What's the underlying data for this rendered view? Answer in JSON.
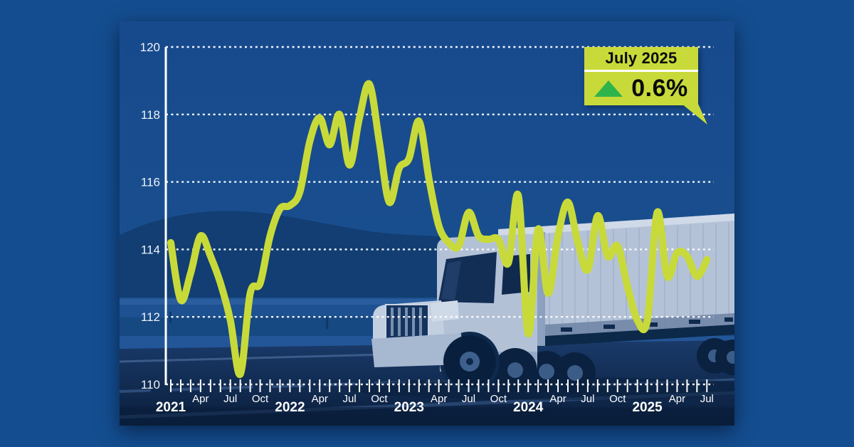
{
  "page": {
    "background_color": "#144e90"
  },
  "callout": {
    "title": "July 2025",
    "value": "0.6%",
    "direction": "up",
    "bg_color": "#c8da3a",
    "arrow_color": "#2fb44c",
    "up_arrow_icon": "triangle-up"
  },
  "chart_data": {
    "type": "line",
    "line_color": "#c8da3a",
    "grid": "dotted-white-horizontal",
    "legend": "none",
    "ylim": [
      110,
      120
    ],
    "y_ticks": [
      120,
      118,
      116,
      114,
      112,
      110
    ],
    "months": [
      "Jan 2021",
      "Feb 2021",
      "Mar 2021",
      "Apr 2021",
      "May 2021",
      "Jun 2021",
      "Jul 2021",
      "Aug 2021",
      "Sep 2021",
      "Oct 2021",
      "Nov 2021",
      "Dec 2021",
      "Jan 2022",
      "Feb 2022",
      "Mar 2022",
      "Apr 2022",
      "May 2022",
      "Jun 2022",
      "Jul 2022",
      "Aug 2022",
      "Sep 2022",
      "Oct 2022",
      "Nov 2022",
      "Dec 2022",
      "Jan 2023",
      "Feb 2023",
      "Mar 2023",
      "Apr 2023",
      "May 2023",
      "Jun 2023",
      "Jul 2023",
      "Aug 2023",
      "Sep 2023",
      "Oct 2023",
      "Nov 2023",
      "Dec 2023",
      "Jan 2024",
      "Feb 2024",
      "Mar 2024",
      "Apr 2024",
      "May 2024",
      "Jun 2024",
      "Jul 2024",
      "Aug 2024",
      "Sep 2024",
      "Oct 2024",
      "Nov 2024",
      "Dec 2024",
      "Jan 2025",
      "Feb 2025",
      "Mar 2025",
      "Apr 2025",
      "May 2025",
      "Jun 2025",
      "Jul 2025"
    ],
    "values": [
      114.2,
      112.5,
      113.3,
      114.4,
      113.8,
      113.0,
      111.9,
      110.3,
      112.7,
      113.0,
      114.4,
      115.2,
      115.3,
      115.7,
      117.2,
      117.9,
      117.1,
      118.0,
      116.5,
      117.9,
      118.9,
      117.2,
      115.4,
      116.4,
      116.7,
      117.8,
      116.1,
      114.7,
      114.2,
      114.1,
      115.1,
      114.4,
      114.3,
      114.3,
      113.6,
      115.6,
      111.5,
      114.6,
      112.7,
      114.4,
      115.4,
      114.2,
      113.4,
      115.0,
      113.8,
      114.1,
      112.9,
      111.9,
      111.9,
      115.1,
      113.2,
      113.9,
      113.8,
      113.2,
      113.7
    ],
    "x_tick_labels": [
      {
        "i": 0,
        "label": "2021",
        "year": true
      },
      {
        "i": 3,
        "label": "Apr",
        "year": false
      },
      {
        "i": 6,
        "label": "Jul",
        "year": false
      },
      {
        "i": 9,
        "label": "Oct",
        "year": false
      },
      {
        "i": 12,
        "label": "2022",
        "year": true
      },
      {
        "i": 15,
        "label": "Apr",
        "year": false
      },
      {
        "i": 18,
        "label": "Jul",
        "year": false
      },
      {
        "i": 21,
        "label": "Oct",
        "year": false
      },
      {
        "i": 24,
        "label": "2023",
        "year": true
      },
      {
        "i": 27,
        "label": "Apr",
        "year": false
      },
      {
        "i": 30,
        "label": "Jul",
        "year": false
      },
      {
        "i": 33,
        "label": "Oct",
        "year": false
      },
      {
        "i": 36,
        "label": "2024",
        "year": true
      },
      {
        "i": 39,
        "label": "Apr",
        "year": false
      },
      {
        "i": 42,
        "label": "Jul",
        "year": false
      },
      {
        "i": 45,
        "label": "Oct",
        "year": false
      },
      {
        "i": 48,
        "label": "2025",
        "year": true
      },
      {
        "i": 51,
        "label": "Apr",
        "year": false
      },
      {
        "i": 54,
        "label": "Jul",
        "year": false
      }
    ]
  }
}
